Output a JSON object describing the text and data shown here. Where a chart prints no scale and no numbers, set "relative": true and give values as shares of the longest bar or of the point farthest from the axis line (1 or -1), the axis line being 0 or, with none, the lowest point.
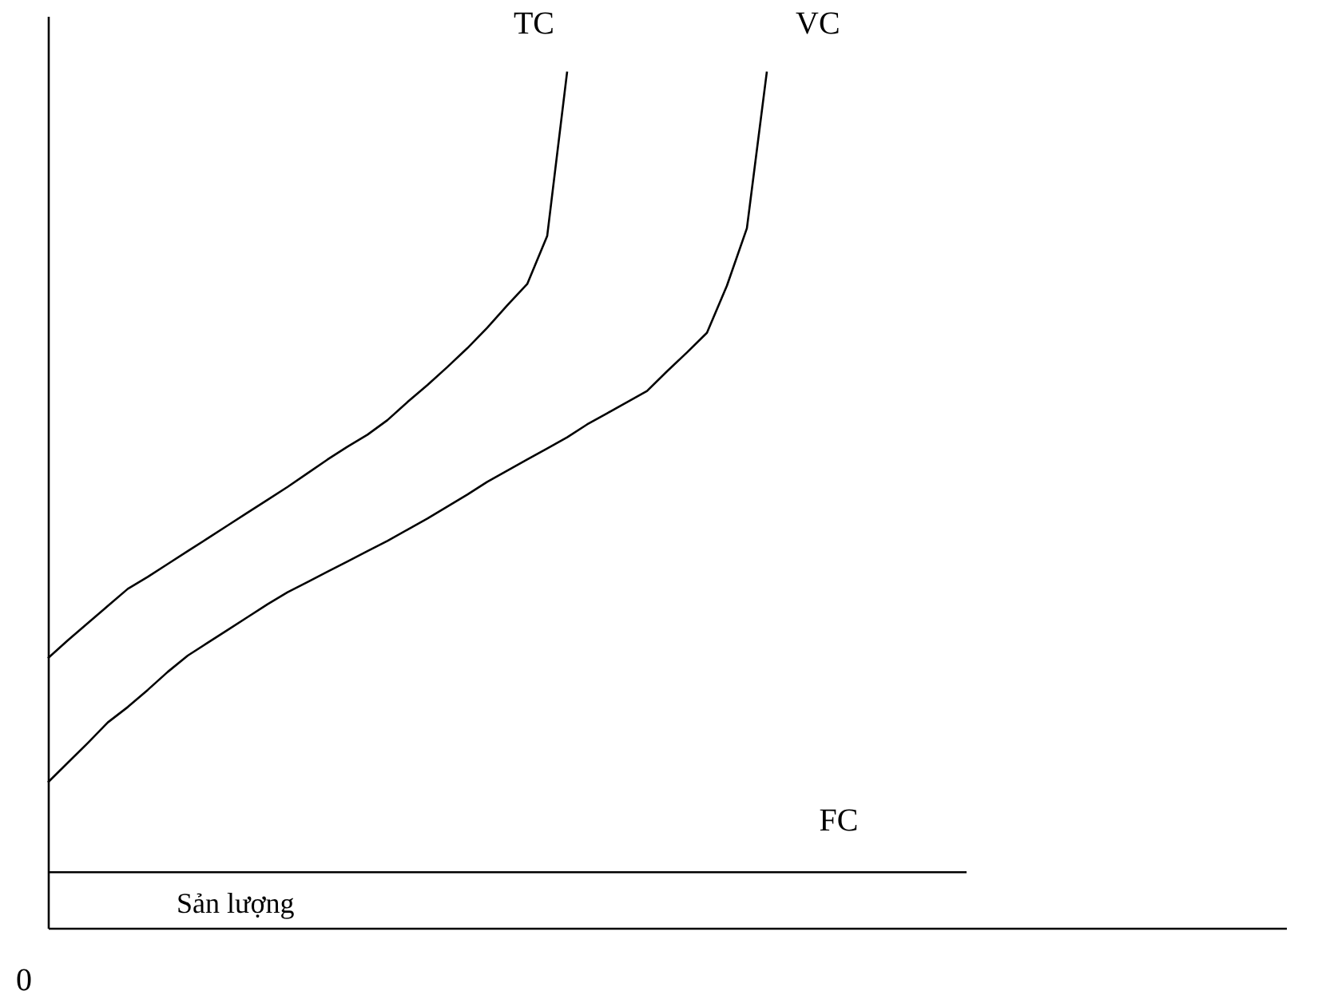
{
  "chart_data": {
    "type": "line",
    "relative": true,
    "xlabel": "Sản lượng",
    "annotations": [
      "0"
    ],
    "tick_labels": false,
    "categories": [
      null,
      null,
      null,
      null,
      null,
      null,
      null,
      null,
      null,
      null,
      null,
      null,
      null,
      null,
      null,
      null,
      null,
      null,
      null,
      null,
      null,
      null,
      null,
      null,
      null,
      null,
      null,
      null,
      null,
      null,
      null,
      null,
      null,
      null,
      null,
      null,
      null,
      null,
      null,
      null,
      null,
      null,
      null,
      null,
      null,
      null,
      null,
      null,
      null,
      null,
      null,
      null,
      null,
      null,
      null,
      null,
      null,
      null,
      null,
      null,
      null,
      null,
      null
    ],
    "series": [
      {
        "name": "TC",
        "color": "#000000",
        "values": [
          0.315,
          0.336,
          0.356,
          0.376,
          0.396,
          0.41,
          0.425,
          0.44,
          0.455,
          0.47,
          0.485,
          0.5,
          0.515,
          0.531,
          0.547,
          0.562,
          0.576,
          0.593,
          0.614,
          0.634,
          0.655,
          0.677,
          0.701,
          0.727,
          0.752,
          0.808,
          1.0,
          null,
          null,
          null,
          null,
          null,
          null,
          null,
          null,
          null,
          null,
          null,
          null,
          null,
          null,
          null,
          null,
          null,
          null,
          null,
          null,
          null,
          null,
          null,
          null,
          null,
          null,
          null,
          null,
          null,
          null,
          null,
          null,
          null,
          null,
          null,
          null
        ]
      },
      {
        "name": "VC",
        "color": "#000000",
        "values": [
          0.17,
          0.193,
          0.216,
          0.24,
          0.258,
          0.278,
          0.299,
          0.318,
          0.333,
          0.348,
          0.363,
          0.378,
          0.392,
          0.404,
          0.416,
          0.428,
          0.44,
          0.452,
          0.465,
          0.478,
          0.492,
          0.506,
          0.521,
          0.534,
          0.547,
          0.56,
          0.573,
          0.588,
          0.601,
          0.614,
          0.627,
          0.65,
          0.672,
          0.695,
          0.75,
          0.817,
          1.0,
          null,
          null,
          null,
          null,
          null,
          null,
          null,
          null,
          null,
          null,
          null,
          null,
          null,
          null,
          null,
          null,
          null,
          null,
          null,
          null,
          null,
          null,
          null,
          null,
          null,
          null
        ]
      },
      {
        "name": "FC",
        "color": "#000000",
        "values": [
          0.065,
          0.065,
          0.065,
          0.065,
          0.065,
          0.065,
          0.065,
          0.065,
          0.065,
          0.065,
          0.065,
          0.065,
          0.065,
          0.065,
          0.065,
          0.065,
          0.065,
          0.065,
          0.065,
          0.065,
          0.065,
          0.065,
          0.065,
          0.065,
          0.065,
          0.065,
          0.065,
          0.065,
          0.065,
          0.065,
          0.065,
          0.065,
          0.065,
          0.065,
          0.065,
          0.065,
          0.065,
          0.065,
          0.065,
          0.065,
          0.065,
          0.065,
          0.065,
          0.065,
          0.065,
          0.065,
          0.065,
          null,
          null,
          null,
          null,
          null,
          null,
          null,
          null,
          null,
          null,
          null,
          null,
          null,
          null,
          null,
          null
        ]
      }
    ]
  }
}
